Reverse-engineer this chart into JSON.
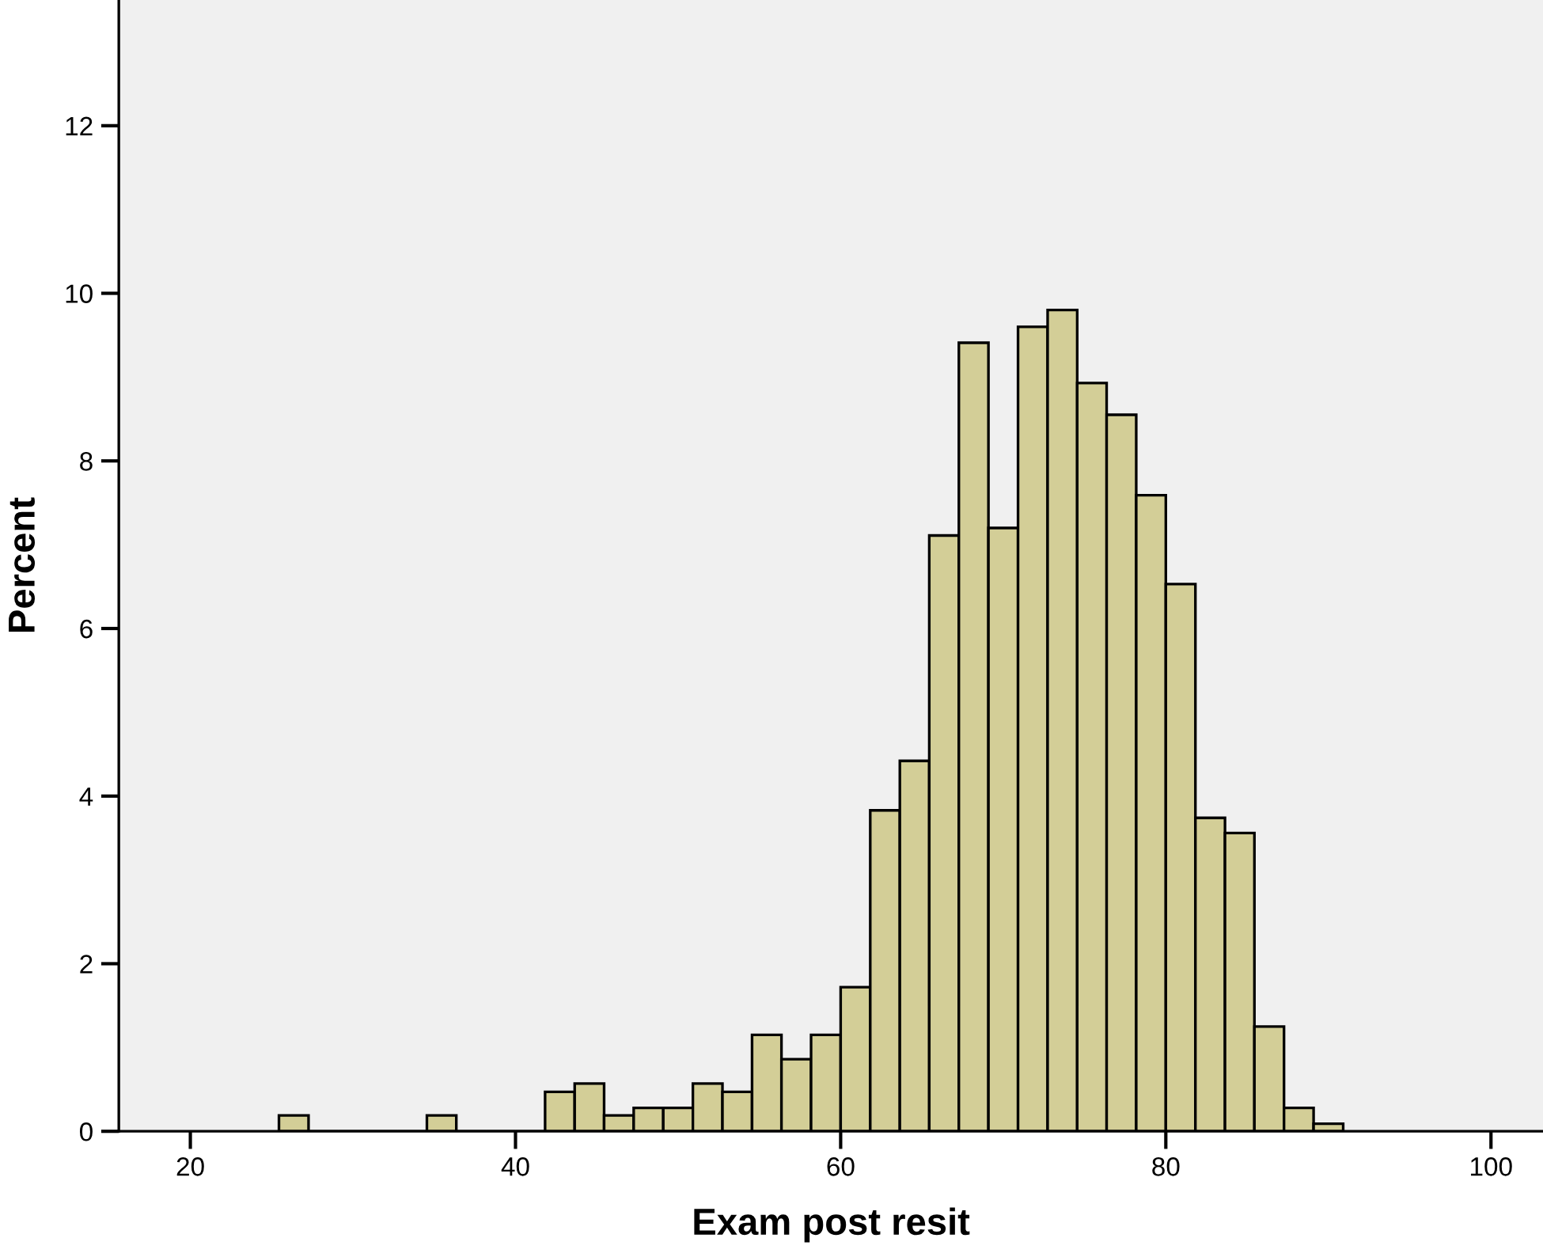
{
  "chart_data": {
    "type": "histogram",
    "xlabel": "Exam post resit",
    "ylabel": "Percent",
    "bins": [
      25.45,
      27.27,
      29.09,
      30.91,
      32.73,
      34.55,
      36.36,
      38.18,
      40.0,
      41.82,
      43.64,
      45.45,
      47.27,
      49.09,
      50.91,
      52.73,
      54.55,
      56.36,
      58.18,
      60.0,
      61.82,
      63.64,
      65.45,
      67.27,
      69.09,
      70.91,
      72.73,
      74.55,
      76.36,
      78.18,
      80.0,
      81.82,
      83.64,
      85.45,
      87.27,
      89.09,
      90.91
    ],
    "values": [
      0.19,
      0,
      0,
      0,
      0,
      0.19,
      0,
      0,
      0,
      0.47,
      0.57,
      0.19,
      0.28,
      0.28,
      0.57,
      0.47,
      1.15,
      0.86,
      1.15,
      1.72,
      3.83,
      4.42,
      7.11,
      9.41,
      7.2,
      9.6,
      9.8,
      8.93,
      8.55,
      7.59,
      6.53,
      3.74,
      3.56,
      1.25,
      0.28,
      0.09
    ],
    "color": "#d3ce97",
    "xlim": [
      15.6,
      103.2
    ],
    "ylim": [
      0,
      13.5
    ],
    "xticks": [
      20,
      40,
      60,
      80,
      100
    ],
    "yticks": [
      0,
      2,
      4,
      6,
      8,
      10,
      12
    ],
    "grid": false
  }
}
